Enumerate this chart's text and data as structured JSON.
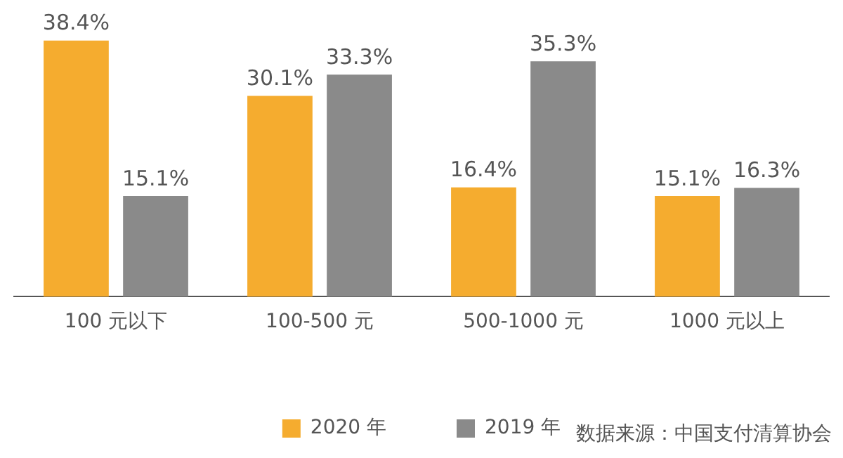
{
  "chart_data": {
    "type": "bar",
    "categories": [
      "100 元以下",
      "100-500 元",
      "500-1000 元",
      "1000 元以上"
    ],
    "series": [
      {
        "name": "2020 年",
        "color": "#f5ac2f",
        "values": [
          38.4,
          30.1,
          16.4,
          15.1
        ],
        "value_labels": [
          "38.4%",
          "30.1%",
          "16.4%",
          "15.1%"
        ]
      },
      {
        "name": "2019 年",
        "color": "#8a8a8a",
        "values": [
          15.1,
          33.3,
          35.3,
          16.3
        ],
        "value_labels": [
          "15.1%",
          "33.3%",
          "35.3%",
          "16.3%"
        ]
      }
    ],
    "ylim": [
      0,
      39
    ],
    "tick_labels": "x",
    "grid": false,
    "legend": "bottom",
    "annotations": [
      "数据来源：中国支付清算协会"
    ]
  }
}
